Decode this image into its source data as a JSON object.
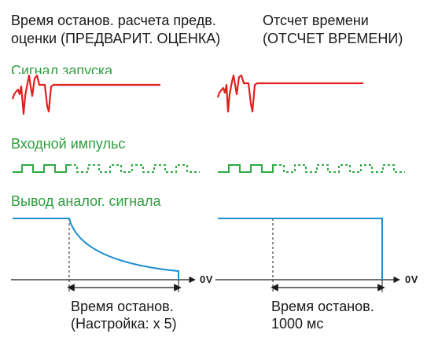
{
  "left_column": {
    "heading_line1": "Время останов. расчета предв.",
    "heading_line2": "оценки (ПРЕДВАРИТ. ОЦЕНКА)",
    "caption_line1": "Время останов.",
    "caption_line2": "(Настройка: x 5)",
    "zero_label": "0V"
  },
  "right_column": {
    "heading_line1": "Отсчет времени",
    "heading_line2": "(ОТСЧЕТ ВРЕМЕНИ)",
    "caption_line1": "Время останов.",
    "caption_line2": "1000 мс",
    "zero_label": "0V"
  },
  "signals": {
    "start_signal_label": "Сигнал запуска",
    "input_pulse_label": "Входной импульс",
    "analog_output_label": "Вывод аналог. сигнала"
  },
  "colors": {
    "start_signal": "#e0201e",
    "input_pulse": "#2faa44",
    "analog_output": "#1e8fd0",
    "labels_green": "#2f9e3e",
    "axis": "#1a1a1a"
  }
}
